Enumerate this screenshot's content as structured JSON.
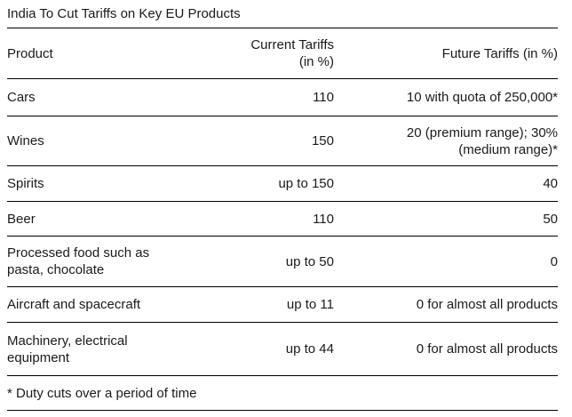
{
  "title": "India To Cut Tariffs on Key EU Products",
  "table": {
    "columns": [
      {
        "id": "product",
        "label": "Product"
      },
      {
        "id": "current",
        "label": "Current Tariffs",
        "label2": "(in %)"
      },
      {
        "id": "future",
        "label": "Future Tariffs (in %)"
      }
    ],
    "rows": [
      {
        "product": "Cars",
        "current": "110",
        "future": "10 with quota of 250,000*"
      },
      {
        "product": "Wines",
        "current": "150",
        "future": "20 (premium range); 30% (medium range)*"
      },
      {
        "product": "Spirits",
        "current": "up to 150",
        "future": "40"
      },
      {
        "product": "Beer",
        "current": "110",
        "future": "50"
      },
      {
        "product": "Processed food such as pasta, chocolate",
        "current": "up to 50",
        "future": "0"
      },
      {
        "product": "Aircraft and spacecraft",
        "current": "up to 11",
        "future": "0 for almost all products"
      },
      {
        "product": "Machinery, electrical equipment",
        "current": "up to 44",
        "future": "0 for almost all products"
      }
    ],
    "footnote": "* Duty cuts over a period of time"
  },
  "colors": {
    "background": "#ffffff",
    "text": "#1a1a1a",
    "rule": "#000000"
  }
}
